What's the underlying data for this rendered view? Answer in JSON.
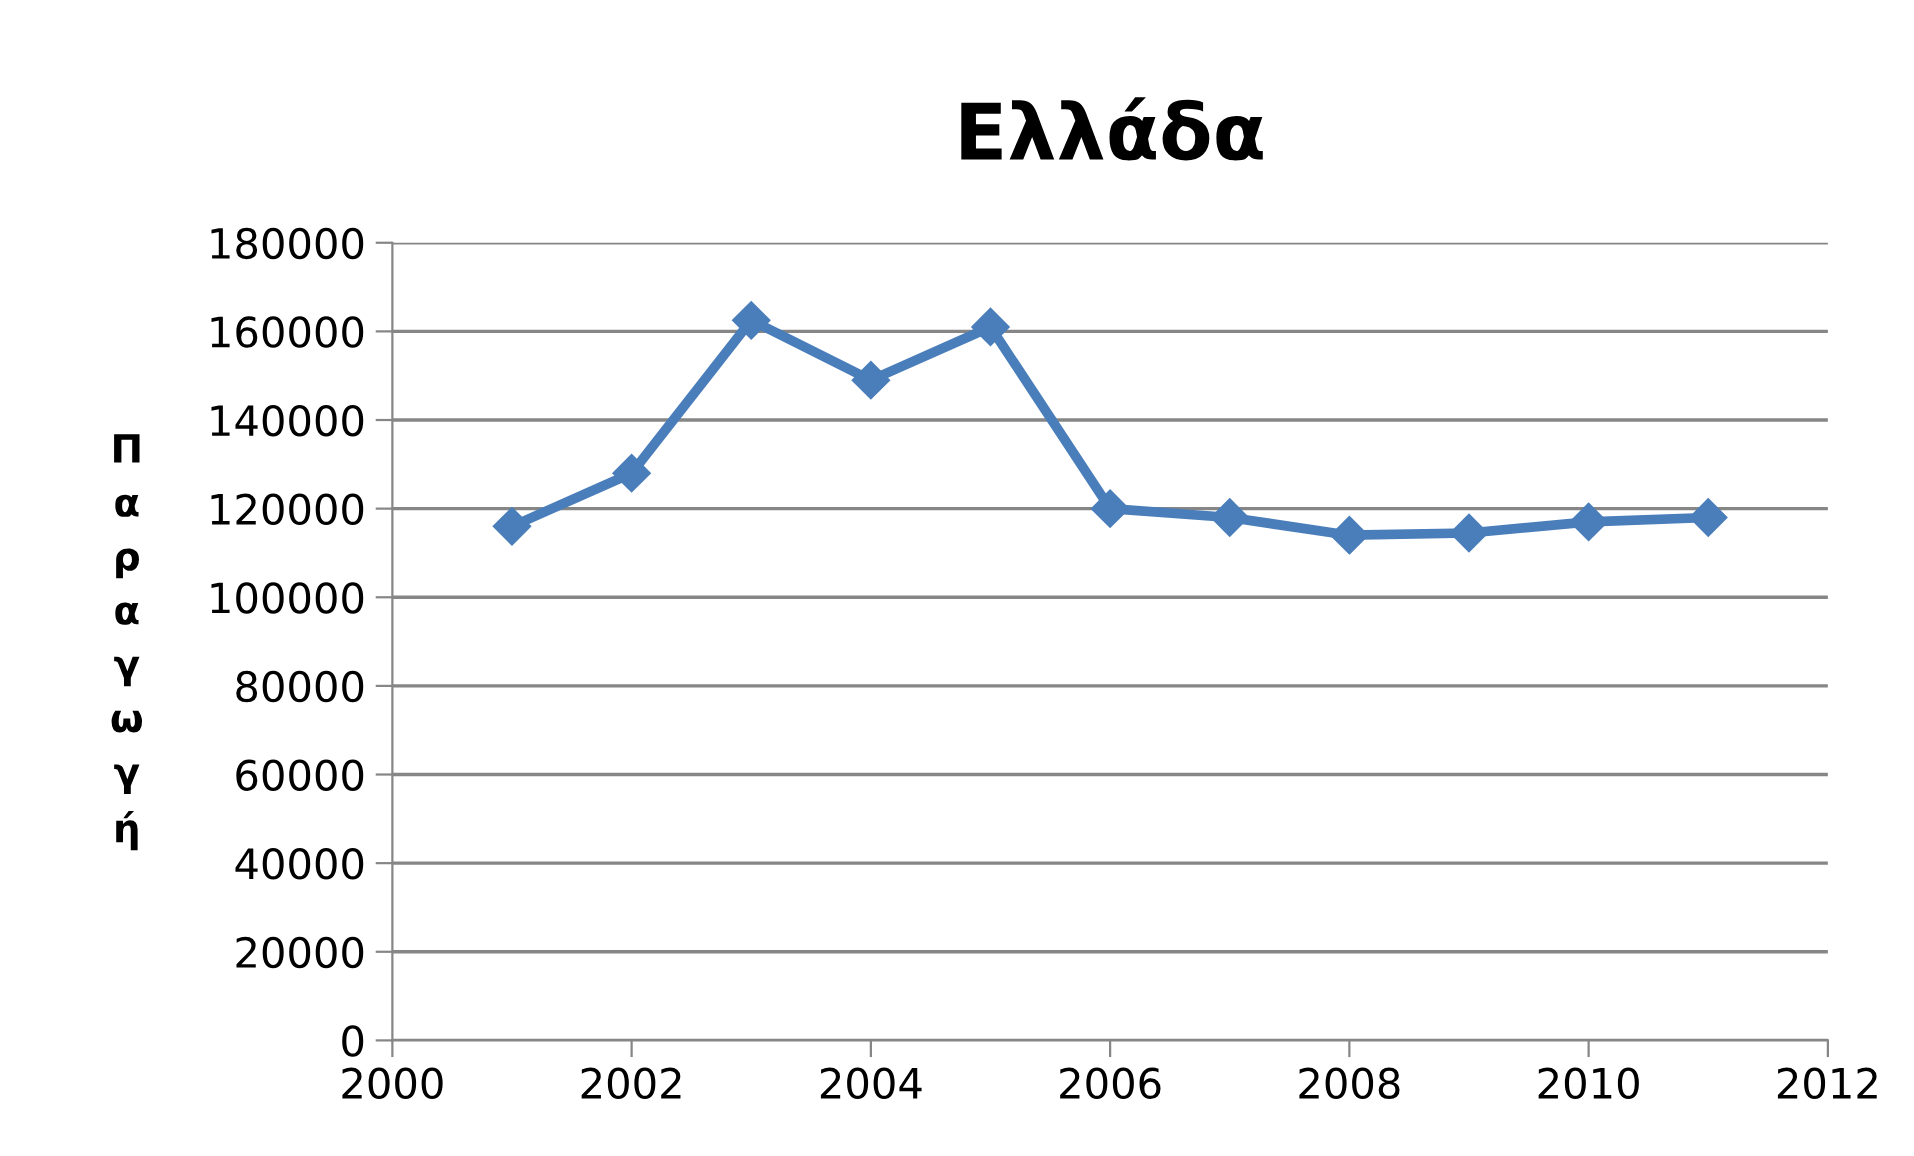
{
  "chart_data": {
    "type": "line",
    "title": "Ελλάδα",
    "ylabel": "Παραγωγή",
    "x": [
      2001,
      2002,
      2003,
      2004,
      2005,
      2006,
      2007,
      2008,
      2009,
      2010,
      2011
    ],
    "series": [
      {
        "color": "#4a7ebb",
        "values": [
          116000,
          128000,
          162500,
          149000,
          161000,
          120000,
          118000,
          114000,
          114500,
          117000,
          118000
        ]
      }
    ],
    "xlim": [
      2000,
      2012
    ],
    "xticks": [
      2000,
      2002,
      2004,
      2006,
      2008,
      2010,
      2012
    ],
    "ylim": [
      0,
      180000
    ],
    "yticks": [
      0,
      20000,
      40000,
      60000,
      80000,
      100000,
      120000,
      140000,
      160000,
      180000
    ],
    "grid": "y",
    "marker": "diamond",
    "line_style": "solid",
    "legend": false
  }
}
